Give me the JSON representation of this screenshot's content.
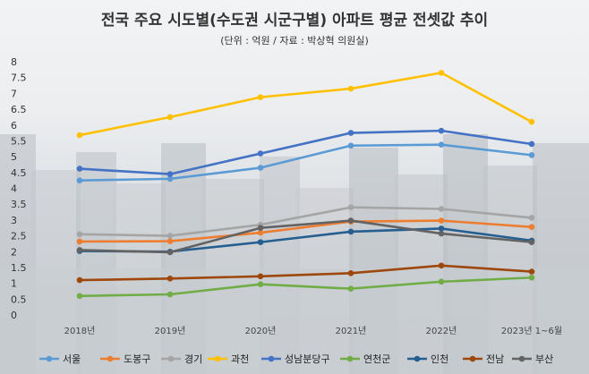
{
  "chart_data": {
    "type": "line",
    "title": "전국 주요 시도별(수도권 시군구별) 아파트 평균 전셋값 추이",
    "subtitle": "(단위 : 억원 / 자료 : 박상혁 의원실)",
    "categories": [
      "2018년",
      "2019년",
      "2020년",
      "2021년",
      "2022년",
      "2023년 1~6월"
    ],
    "ylim": [
      0,
      8
    ],
    "yticks": [
      "0",
      "0.5",
      "1",
      "1.5",
      "2",
      "2.5",
      "3",
      "3.5",
      "4",
      "4.5",
      "5",
      "5.5",
      "6",
      "6.5",
      "7",
      "7.5",
      "8"
    ],
    "grid": false,
    "legend_position": "bottom",
    "series": [
      {
        "name": "서울",
        "color": "#5b9bd5",
        "values": [
          4.25,
          4.3,
          4.65,
          5.35,
          5.38,
          5.05
        ]
      },
      {
        "name": "도봉구",
        "color": "#ed7d31",
        "values": [
          2.32,
          2.33,
          2.6,
          2.95,
          2.98,
          2.78
        ]
      },
      {
        "name": "경기",
        "color": "#a5a5a5",
        "values": [
          2.55,
          2.5,
          2.85,
          3.4,
          3.35,
          3.07
        ]
      },
      {
        "name": "과천",
        "color": "#ffc000",
        "values": [
          5.68,
          6.25,
          6.88,
          7.15,
          7.65,
          6.1
        ]
      },
      {
        "name": "성남분당구",
        "color": "#4472c4",
        "values": [
          4.62,
          4.45,
          5.1,
          5.75,
          5.82,
          5.4
        ]
      },
      {
        "name": "연천군",
        "color": "#70ad47",
        "values": [
          0.6,
          0.65,
          0.97,
          0.83,
          1.05,
          1.18
        ]
      },
      {
        "name": "인천",
        "color": "#255e91",
        "values": [
          2.02,
          2.0,
          2.3,
          2.63,
          2.73,
          2.35
        ]
      },
      {
        "name": "전남",
        "color": "#9e480e",
        "values": [
          1.1,
          1.15,
          1.22,
          1.32,
          1.56,
          1.37
        ]
      },
      {
        "name": "부산",
        "color": "#636363",
        "values": [
          2.05,
          1.98,
          2.75,
          2.98,
          2.57,
          2.3
        ]
      }
    ]
  }
}
